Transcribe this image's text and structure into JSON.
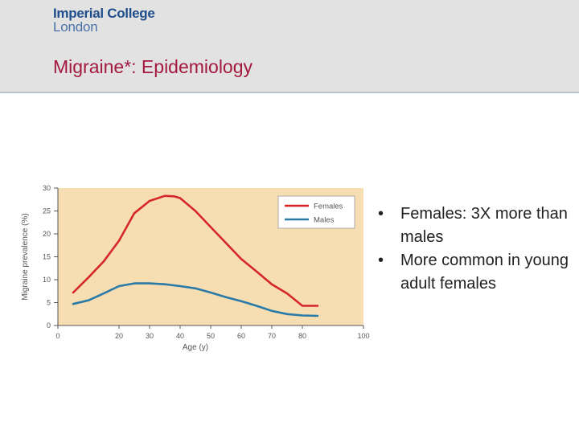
{
  "header": {
    "logo_line1": "Imperial College",
    "logo_line2": "London",
    "title": "Migraine*:  Epidemiology"
  },
  "bullets": [
    "Females: 3X more than males",
    "More common in young adult females"
  ],
  "colors": {
    "females": "#d62728",
    "males": "#2a7aa8",
    "plot_bg": "#f6deb2",
    "title": "#a3193f"
  },
  "chart_data": {
    "type": "line",
    "xlabel": "Age (y)",
    "ylabel": "Migraine prevalence (%)",
    "xlim": [
      0,
      100
    ],
    "ylim": [
      0,
      30
    ],
    "xticks": [
      0,
      20,
      30,
      40,
      50,
      60,
      70,
      80,
      100
    ],
    "yticks": [
      0,
      5,
      10,
      15,
      20,
      25,
      30
    ],
    "legend_position": "top-right",
    "series": [
      {
        "name": "Females",
        "color": "#d62728",
        "x": [
          5,
          10,
          15,
          20,
          25,
          30,
          35,
          38,
          40,
          45,
          50,
          55,
          60,
          65,
          70,
          75,
          80,
          85
        ],
        "y": [
          7.2,
          10.5,
          14,
          18.5,
          24.5,
          27.2,
          28.3,
          28.2,
          27.8,
          25,
          21.5,
          18,
          14.5,
          11.8,
          9,
          7,
          4.3,
          4.3
        ]
      },
      {
        "name": "Males",
        "color": "#2a7aa8",
        "x": [
          5,
          10,
          15,
          20,
          25,
          30,
          35,
          40,
          45,
          50,
          55,
          60,
          65,
          70,
          75,
          80,
          85
        ],
        "y": [
          4.7,
          5.5,
          7,
          8.6,
          9.2,
          9.2,
          9,
          8.6,
          8.1,
          7.2,
          6.2,
          5.3,
          4.3,
          3.2,
          2.5,
          2.2,
          2.1
        ]
      }
    ]
  }
}
